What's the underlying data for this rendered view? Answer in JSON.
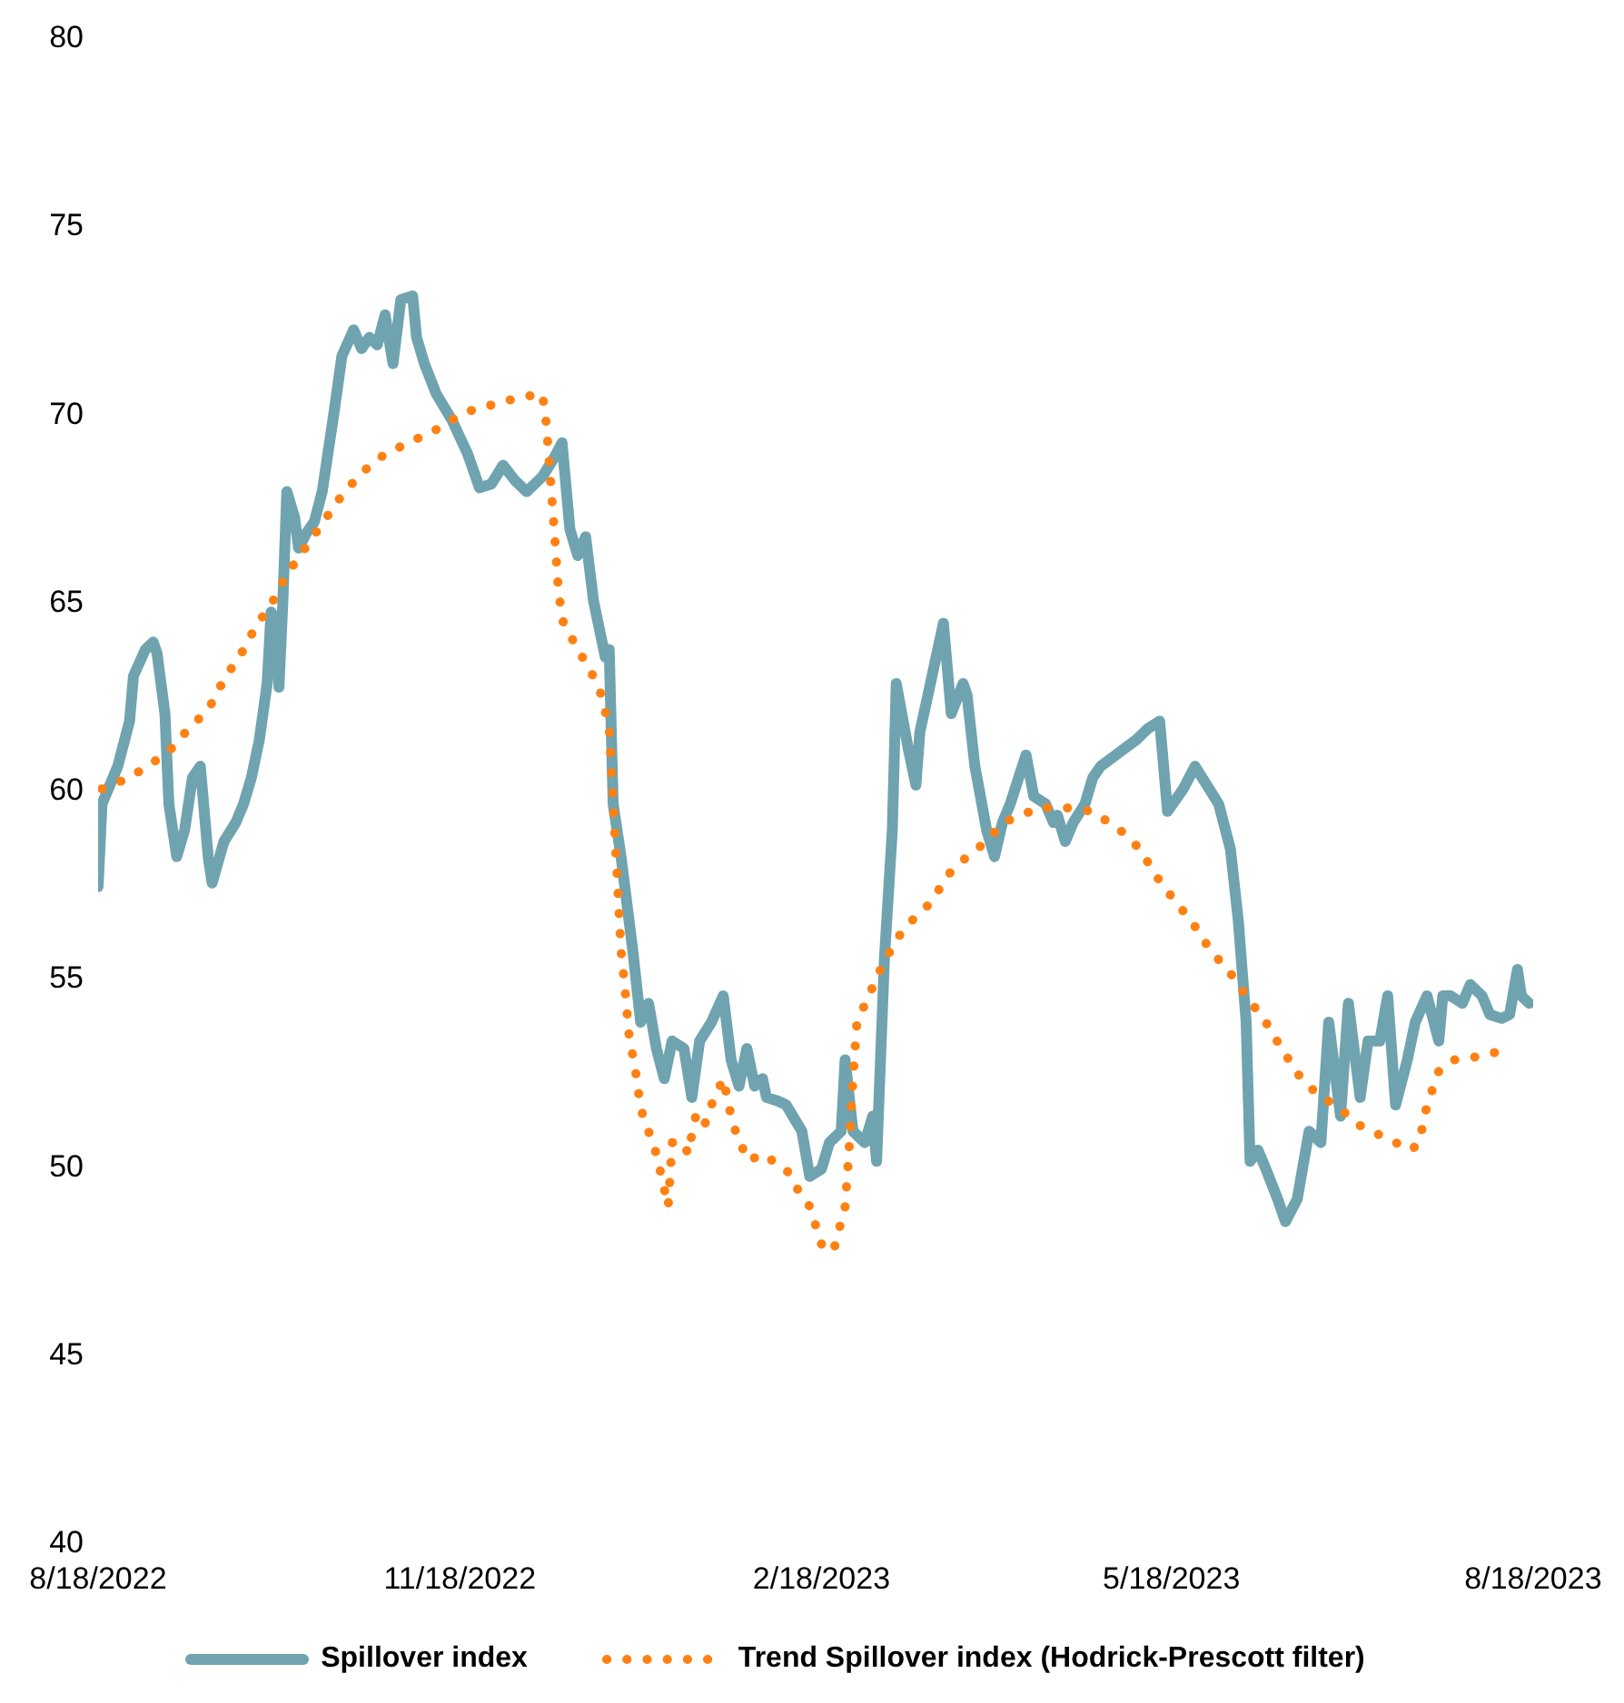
{
  "chart_data": {
    "type": "line",
    "legend": "bottom",
    "grid": false,
    "marker": "none",
    "xlim": [
      "2022-08-18",
      "2023-08-18"
    ],
    "xticks": [
      {
        "value": "2022-08-18",
        "label": "8/18/2022"
      },
      {
        "value": "2022-11-18",
        "label": "11/18/2022"
      },
      {
        "value": "2023-02-18",
        "label": "2/18/2023"
      },
      {
        "value": "2023-05-18",
        "label": "5/18/2023"
      },
      {
        "value": "2023-08-18",
        "label": "8/18/2023"
      }
    ],
    "ylim": [
      40,
      80
    ],
    "yticks": [
      40,
      45,
      50,
      55,
      60,
      65,
      70,
      75,
      80
    ],
    "series": [
      {
        "name": "Spillover index",
        "color": "#6fa3af",
        "line_style": "solid",
        "x": [
          "2022-08-18",
          "2022-08-19",
          "2022-08-23",
          "2022-08-26",
          "2022-08-27",
          "2022-08-30",
          "2022-09-01",
          "2022-09-02",
          "2022-09-04",
          "2022-09-05",
          "2022-09-07",
          "2022-09-09",
          "2022-09-11",
          "2022-09-13",
          "2022-09-15",
          "2022-09-16",
          "2022-09-19",
          "2022-09-22",
          "2022-09-24",
          "2022-09-26",
          "2022-09-28",
          "2022-09-30",
          "2022-10-01",
          "2022-10-02",
          "2022-10-03",
          "2022-10-04",
          "2022-10-05",
          "2022-10-07",
          "2022-10-08",
          "2022-10-10",
          "2022-10-12",
          "2022-10-14",
          "2022-10-17",
          "2022-10-19",
          "2022-10-22",
          "2022-10-24",
          "2022-10-26",
          "2022-10-28",
          "2022-10-30",
          "2022-11-01",
          "2022-11-03",
          "2022-11-06",
          "2022-11-07",
          "2022-11-09",
          "2022-11-12",
          "2022-11-16",
          "2022-11-20",
          "2022-11-23",
          "2022-11-26",
          "2022-11-29",
          "2022-12-02",
          "2022-12-05",
          "2022-12-09",
          "2022-12-12",
          "2022-12-14",
          "2022-12-16",
          "2022-12-18",
          "2022-12-20",
          "2022-12-22",
          "2022-12-23",
          "2022-12-25",
          "2022-12-26",
          "2022-12-27",
          "2022-12-29",
          "2023-01-01",
          "2023-01-03",
          "2023-01-05",
          "2023-01-07",
          "2023-01-09",
          "2023-01-11",
          "2023-01-14",
          "2023-01-16",
          "2023-01-18",
          "2023-01-21",
          "2023-01-24",
          "2023-01-26",
          "2023-01-28",
          "2023-01-30",
          "2023-02-01",
          "2023-02-03",
          "2023-02-04",
          "2023-02-07",
          "2023-02-09",
          "2023-02-13",
          "2023-02-15",
          "2023-02-18",
          "2023-02-20",
          "2023-02-23",
          "2023-02-24",
          "2023-02-26",
          "2023-03-01",
          "2023-03-03",
          "2023-03-04",
          "2023-03-06",
          "2023-03-08",
          "2023-03-09",
          "2023-03-12",
          "2023-03-14",
          "2023-03-15",
          "2023-03-21",
          "2023-03-23",
          "2023-03-26",
          "2023-03-27",
          "2023-03-29",
          "2023-04-01",
          "2023-04-03",
          "2023-04-05",
          "2023-04-07",
          "2023-04-11",
          "2023-04-13",
          "2023-04-16",
          "2023-04-18",
          "2023-04-19",
          "2023-04-21",
          "2023-04-23",
          "2023-04-26",
          "2023-04-28",
          "2023-04-30",
          "2023-05-09",
          "2023-05-12",
          "2023-05-15",
          "2023-05-17",
          "2023-05-21",
          "2023-05-24",
          "2023-05-27",
          "2023-05-30",
          "2023-06-02",
          "2023-06-04",
          "2023-06-06",
          "2023-06-07",
          "2023-06-09",
          "2023-06-11",
          "2023-06-14",
          "2023-06-16",
          "2023-06-19",
          "2023-06-22",
          "2023-06-25",
          "2023-06-27",
          "2023-06-30",
          "2023-07-02",
          "2023-07-05",
          "2023-07-07",
          "2023-07-10",
          "2023-07-12",
          "2023-07-14",
          "2023-07-17",
          "2023-07-19",
          "2023-07-22",
          "2023-07-25",
          "2023-07-26",
          "2023-07-28",
          "2023-07-31",
          "2023-08-02",
          "2023-08-05",
          "2023-08-07",
          "2023-08-10",
          "2023-08-12",
          "2023-08-14",
          "2023-08-15",
          "2023-08-17"
        ],
        "values": [
          57.4,
          59.6,
          60.6,
          61.8,
          63,
          63.7,
          63.9,
          63.6,
          62,
          59.6,
          58.2,
          58.9,
          60.3,
          60.6,
          58.2,
          57.5,
          58.6,
          59.1,
          59.6,
          60.3,
          61.3,
          62.8,
          64.7,
          64.5,
          62.7,
          65,
          67.9,
          67.2,
          66.4,
          66.8,
          67.1,
          67.9,
          70,
          71.5,
          72.2,
          71.7,
          72,
          71.8,
          72.6,
          71.3,
          73,
          73.1,
          72,
          71.3,
          70.5,
          69.8,
          68.9,
          68,
          68.1,
          68.6,
          68.2,
          67.9,
          68.3,
          68.8,
          69.2,
          66.9,
          66.2,
          66.7,
          65,
          64.5,
          63.5,
          63.7,
          59.6,
          58.2,
          55.7,
          53.8,
          54.3,
          53.1,
          52.3,
          53.3,
          53.1,
          51.8,
          53.3,
          53.8,
          54.5,
          52.8,
          52.1,
          53.1,
          52.1,
          52.3,
          51.8,
          51.7,
          51.6,
          50.9,
          49.7,
          49.9,
          50.6,
          50.9,
          52.8,
          50.9,
          50.6,
          51.3,
          50.1,
          55.5,
          58.9,
          62.8,
          61.1,
          60.1,
          61.5,
          64.4,
          62,
          62.8,
          62.5,
          60.6,
          58.9,
          58.2,
          59.1,
          59.6,
          60.9,
          59.8,
          59.6,
          59.1,
          59.3,
          58.6,
          59.1,
          59.6,
          60.3,
          60.6,
          61.3,
          61.6,
          61.8,
          59.4,
          60,
          60.6,
          60.1,
          59.6,
          58.4,
          56.5,
          53.8,
          50.1,
          50.4,
          49.9,
          49.1,
          48.5,
          49.1,
          50.9,
          50.6,
          53.8,
          51.3,
          54.3,
          51.8,
          53.3,
          53.3,
          54.5,
          51.6,
          52.8,
          53.8,
          54.5,
          53.3,
          54.5,
          54.5,
          54.3,
          54.8,
          54.5,
          54,
          53.9,
          54,
          55.2,
          54.5,
          54.3
        ]
      },
      {
        "name": "Trend Spillover index (Hodrick-Prescott filter)",
        "color": "#ff8112",
        "line_style": "dotted",
        "x": [
          "2022-08-19",
          "2022-08-26",
          "2022-09-01",
          "2022-09-06",
          "2022-09-10",
          "2022-09-15",
          "2022-09-19",
          "2022-09-24",
          "2022-09-27",
          "2022-10-01",
          "2022-10-05",
          "2022-10-11",
          "2022-10-15",
          "2022-10-19",
          "2022-10-24",
          "2022-10-30",
          "2022-11-07",
          "2022-11-13",
          "2022-11-19",
          "2022-11-26",
          "2022-12-03",
          "2022-12-09",
          "2022-12-10",
          "2022-12-11",
          "2022-12-12",
          "2022-12-13",
          "2022-12-14",
          "2022-12-18",
          "2022-12-21",
          "2022-12-24",
          "2022-12-26",
          "2022-12-27",
          "2022-12-28",
          "2022-12-29",
          "2022-12-30",
          "2022-12-31",
          "2023-01-02",
          "2023-01-03",
          "2023-01-05",
          "2023-01-07",
          "2023-01-10",
          "2023-01-11",
          "2023-01-14",
          "2023-01-15",
          "2023-01-17",
          "2023-01-19",
          "2023-01-21",
          "2023-01-24",
          "2023-01-26",
          "2023-01-28",
          "2023-01-31",
          "2023-02-02",
          "2023-02-06",
          "2023-02-09",
          "2023-02-11",
          "2023-02-15",
          "2023-02-18",
          "2023-02-21",
          "2023-02-24",
          "2023-02-25",
          "2023-02-26",
          "2023-02-27",
          "2023-03-02",
          "2023-03-05",
          "2023-03-09",
          "2023-03-13",
          "2023-03-18",
          "2023-03-22",
          "2023-03-27",
          "2023-04-01",
          "2023-04-05",
          "2023-04-10",
          "2023-04-14",
          "2023-04-21",
          "2023-04-28",
          "2023-05-05",
          "2023-05-10",
          "2023-05-14",
          "2023-05-19",
          "2023-05-23",
          "2023-05-28",
          "2023-06-02",
          "2023-06-06",
          "2023-06-11",
          "2023-06-15",
          "2023-06-20",
          "2023-06-25",
          "2023-06-29",
          "2023-07-04",
          "2023-07-08",
          "2023-07-18",
          "2023-07-20",
          "2023-07-22",
          "2023-07-25",
          "2023-07-29",
          "2023-08-05",
          "2023-08-12"
        ],
        "values": [
          60,
          60.3,
          60.7,
          61.1,
          61.6,
          62.1,
          62.9,
          63.7,
          64.3,
          64.9,
          65.7,
          66.6,
          67.2,
          67.8,
          68.4,
          68.9,
          69.3,
          69.6,
          70,
          70.2,
          70.4,
          70.5,
          69.7,
          68.3,
          66.9,
          65.4,
          64.5,
          63.7,
          63.2,
          62.5,
          61.6,
          59.6,
          57.7,
          55.7,
          54.7,
          53.5,
          52.3,
          51.5,
          50.9,
          50.3,
          48.9,
          50.6,
          50.6,
          50.3,
          51.3,
          51,
          51.6,
          52.3,
          51.3,
          50.6,
          50.1,
          50.3,
          50.1,
          49.9,
          49.5,
          48.9,
          47.9,
          47.7,
          48.9,
          50.4,
          52.3,
          53.8,
          54.5,
          55.2,
          56,
          56.5,
          57,
          57.7,
          58.2,
          58.6,
          59.1,
          59.3,
          59.5,
          59.5,
          59.4,
          58.9,
          58.4,
          57.7,
          57,
          56.5,
          55.7,
          55.1,
          54.5,
          53.8,
          53.1,
          52.3,
          51.8,
          51.6,
          51.1,
          50.9,
          50.4,
          50.6,
          51.6,
          52.5,
          52.8,
          52.9,
          53.1
        ]
      }
    ]
  }
}
